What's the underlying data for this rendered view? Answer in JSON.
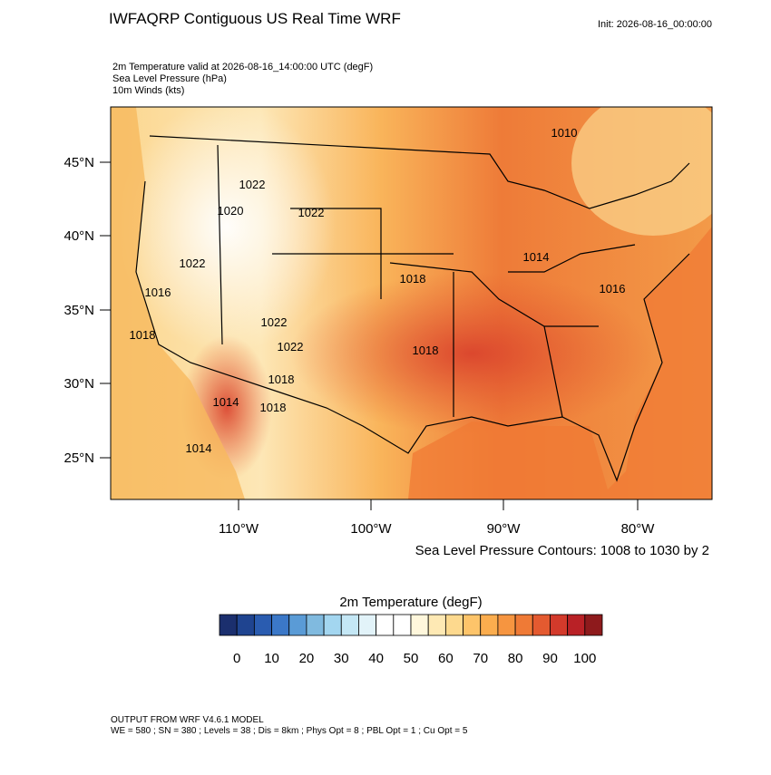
{
  "header": {
    "title": "IWFAQRP Contiguous US Real Time WRF",
    "init": "Init: 2026-08-16_00:00:00"
  },
  "fields": [
    "2m Temperature valid at 2026-08-16_14:00:00 UTC   (degF)",
    "Sea Level Pressure   (hPa)",
    "10m Winds   (kts)"
  ],
  "map": {
    "lat_labels": [
      "45°N",
      "40°N",
      "35°N",
      "30°N",
      "25°N"
    ],
    "lon_labels": [
      "110°W",
      "100°W",
      "90°W",
      "80°W"
    ],
    "contour_labels": [
      "1010",
      "1022",
      "1020",
      "1022",
      "1014",
      "1022",
      "1018",
      "1016",
      "1016",
      "1022",
      "1018",
      "1018",
      "1022",
      "1018",
      "1014",
      "1018",
      "1014"
    ],
    "contour_note": "Sea Level Pressure Contours: 1008 to 1030 by 2"
  },
  "colorbar": {
    "title": "2m Temperature  (degF)",
    "range": [
      -5,
      105
    ],
    "colors": [
      "#1b2f6e",
      "#1f4490",
      "#2a5cb0",
      "#3b78c8",
      "#5a9bd6",
      "#80badf",
      "#a3d6f0",
      "#c4e7f5",
      "#e2f3f9",
      "#ffffff",
      "#ffffff",
      "#fff7dc",
      "#fee9b4",
      "#fdd98e",
      "#fdc46a",
      "#fbad4e",
      "#f69540",
      "#ef7a36",
      "#e45a30",
      "#d33a2b",
      "#b92126",
      "#8e1a1c"
    ],
    "ticks": [
      0,
      10,
      20,
      30,
      40,
      50,
      60,
      70,
      80,
      90,
      100
    ]
  },
  "footer": [
    "OUTPUT FROM WRF V4.6.1 MODEL",
    "WE = 580 ; SN = 380 ; Levels = 38 ; Dis = 8km ; Phys Opt = 8 ; PBL Opt = 1 ; Cu Opt = 5"
  ]
}
